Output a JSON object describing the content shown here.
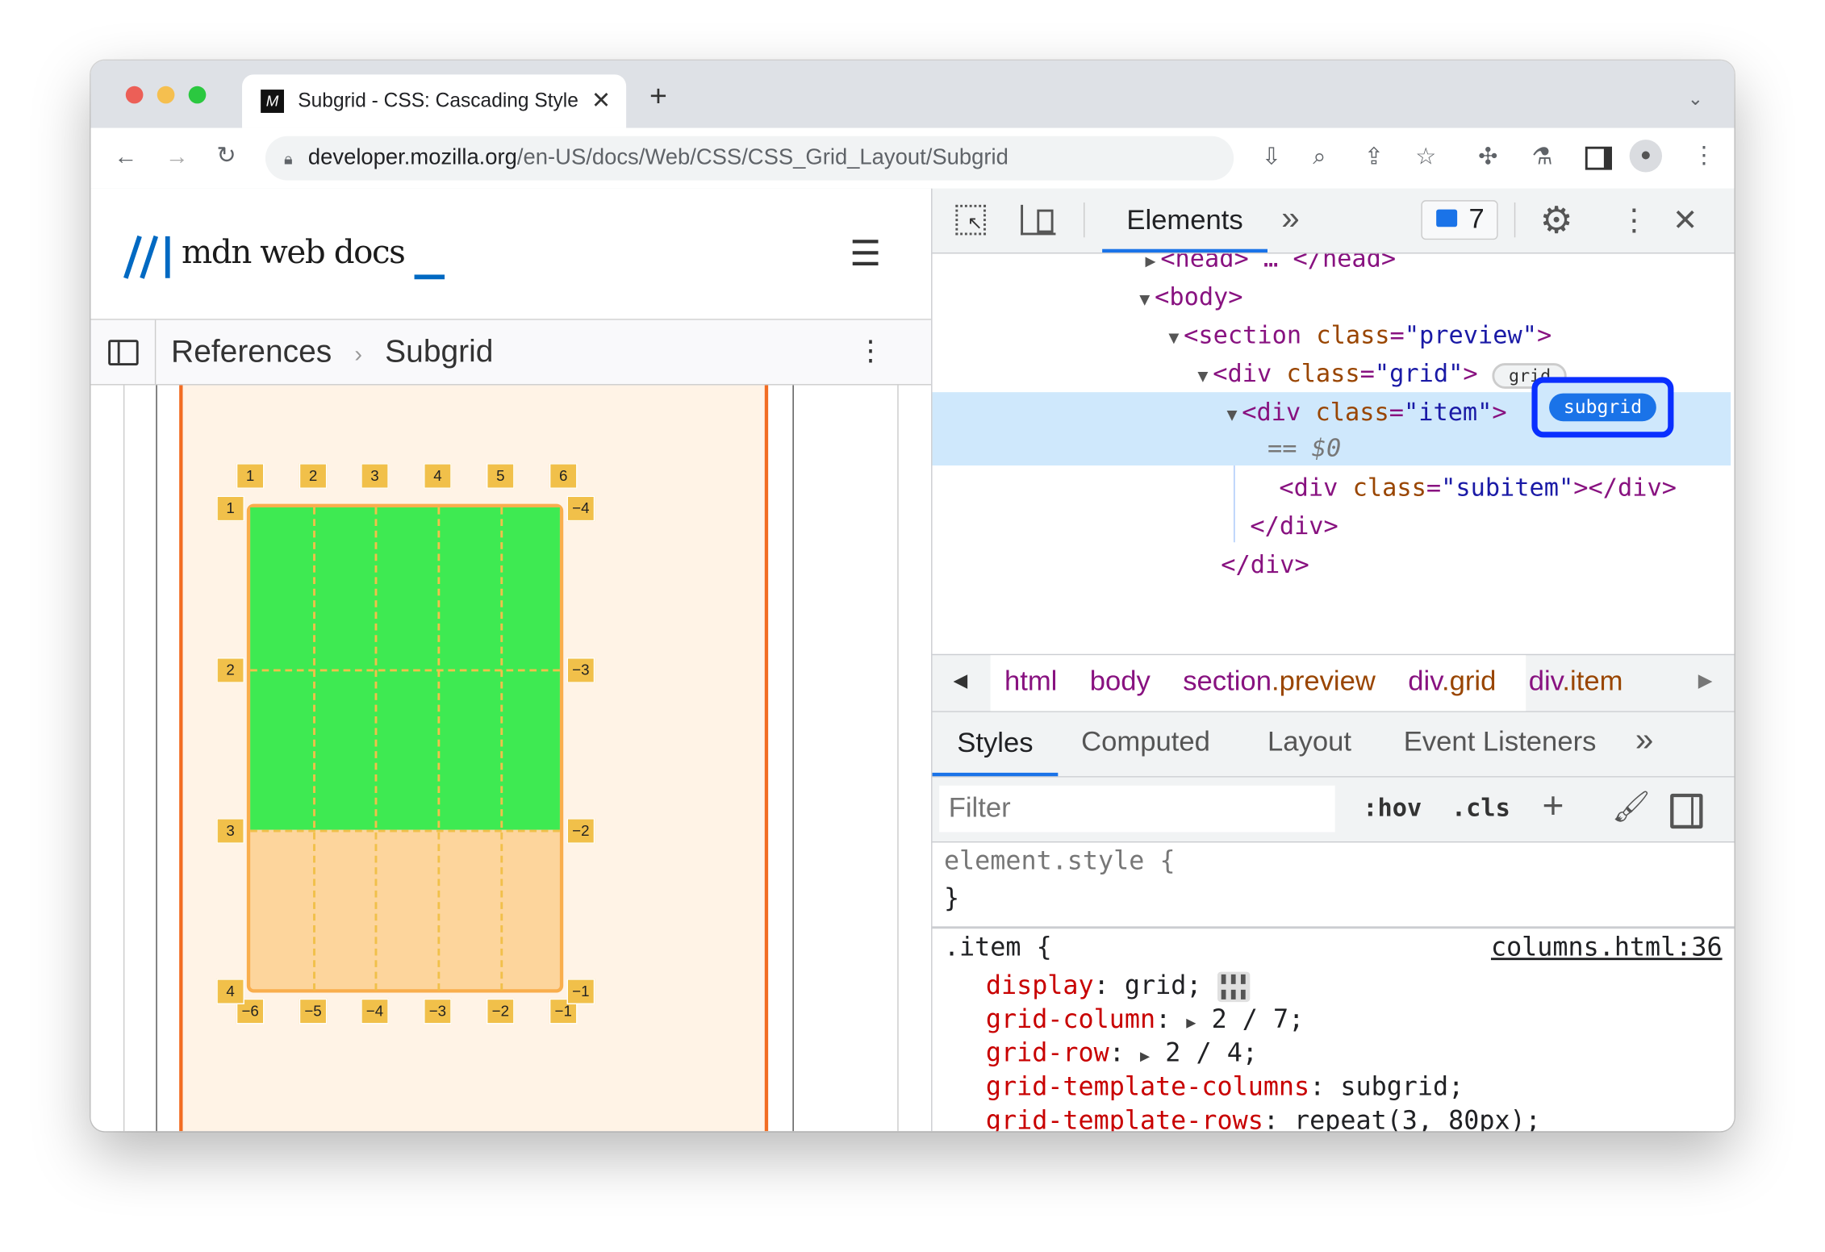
{
  "browser": {
    "tab_title": "Subgrid - CSS: Cascading Style",
    "tab_favicon": "M",
    "url_host": "developer.mozilla.org",
    "url_path": "/en-US/docs/Web/CSS/CSS_Grid_Layout/Subgrid"
  },
  "page": {
    "logo_text": "mdn web docs",
    "logo_cursor": "_",
    "breadcrumb": [
      "References",
      "Subgrid"
    ],
    "brand_color": "#0069c2"
  },
  "grid_overlay": {
    "top_labels": [
      "1",
      "2",
      "3",
      "4",
      "5",
      "6"
    ],
    "bottom_labels": [
      "−6",
      "−5",
      "−4",
      "−3",
      "−2",
      "−1"
    ],
    "left_labels": [
      "1",
      "2",
      "3",
      "4"
    ],
    "right_labels": [
      "−4",
      "−3",
      "−2",
      "−1"
    ],
    "item_color": "#3eea52",
    "label_color": "#f1c04a"
  },
  "devtools": {
    "main_tab": "Elements",
    "more_tabs": "»",
    "issues_count": "7",
    "dom": {
      "head_line": "<head> … </head>",
      "body": "<body>",
      "section_tag": "<section",
      "section_attr": "class",
      "section_val": "\"preview\"",
      "grid_tag": "<div",
      "grid_attr": "class",
      "grid_val": "\"grid\"",
      "grid_badge": "grid",
      "item_tag": "<div",
      "item_attr": "class",
      "item_val": "\"item\"",
      "item_badge": "subgrid",
      "selected_marker": "== $0",
      "subitem_tag": "<div",
      "subitem_attr": "class",
      "subitem_val": "\"subitem\"",
      "subitem_close": "></div>",
      "close_div": "</div>",
      "eq": "=",
      "gt": ">"
    },
    "breadcrumbs": [
      {
        "tag": "html",
        "cls": ""
      },
      {
        "tag": "body",
        "cls": ""
      },
      {
        "tag": "section",
        "cls": ".preview"
      },
      {
        "tag": "div",
        "cls": ".grid"
      },
      {
        "tag": "div",
        "cls": ".item"
      }
    ],
    "panel_tabs": [
      "Styles",
      "Computed",
      "Layout",
      "Event Listeners"
    ],
    "filter_placeholder": "Filter",
    "hov": ":hov",
    "cls": ".cls",
    "element_style": "element.style {",
    "close_brace": "}",
    "rule_selector": ".item {",
    "rule_source": "columns.html:36",
    "declarations": [
      {
        "prop": "display",
        "value": "grid;"
      },
      {
        "prop": "grid-column",
        "value": "2 / 7;"
      },
      {
        "prop": "grid-row",
        "value": "2 / 4;"
      },
      {
        "prop": "grid-template-columns",
        "value": "subgrid;"
      },
      {
        "prop": "grid-template-rows",
        "value": "repeat(3, 80px);"
      }
    ]
  }
}
